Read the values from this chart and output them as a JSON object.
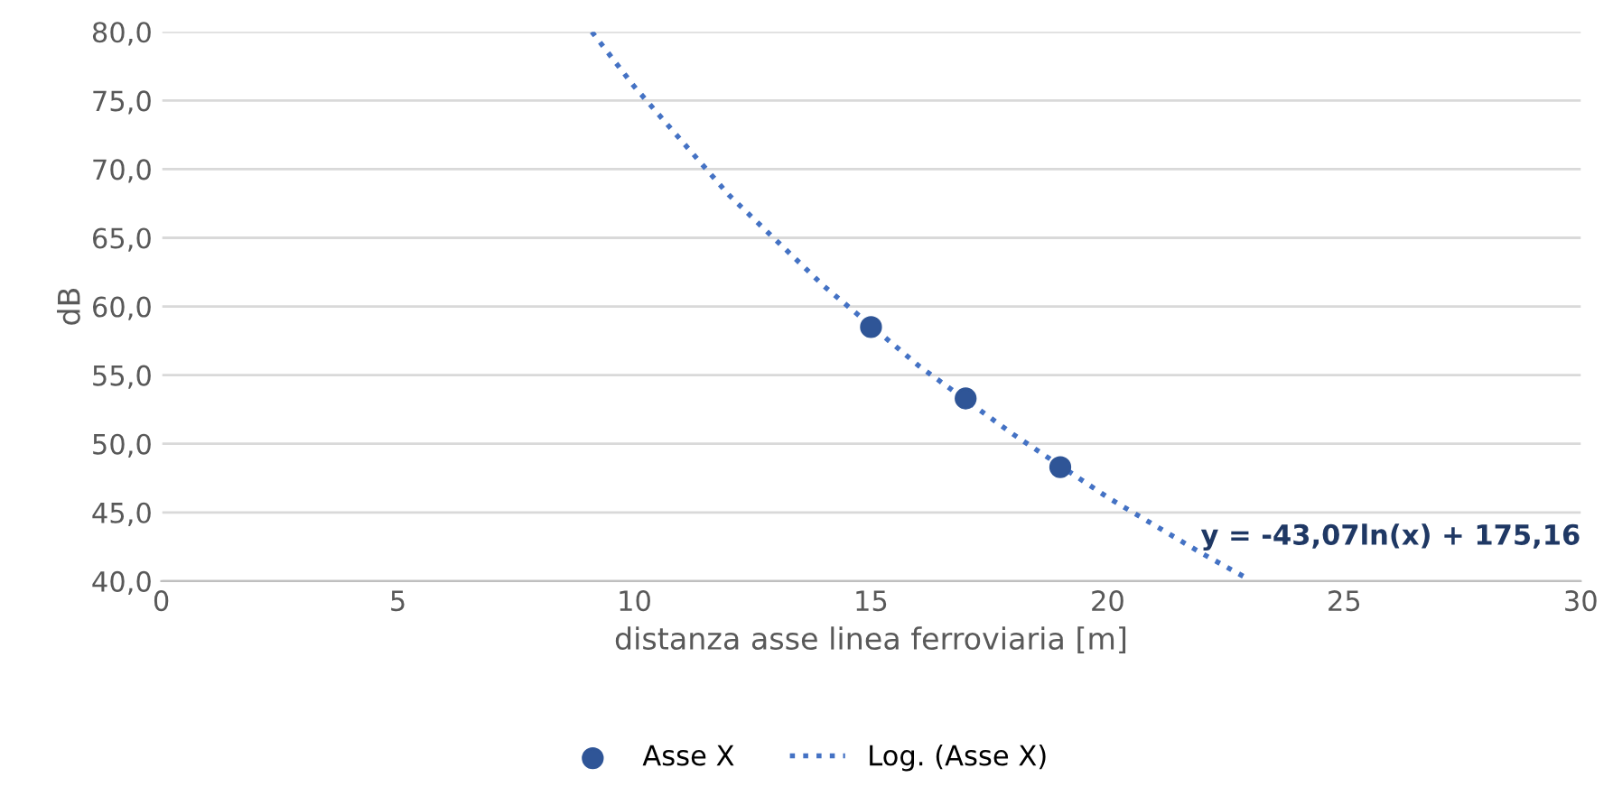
{
  "chart_data": {
    "type": "scatter",
    "xlabel": "distanza asse linea ferroviaria [m]",
    "ylabel": "dB",
    "xlim": [
      0,
      30
    ],
    "xticks": [
      0,
      5,
      10,
      15,
      20,
      25,
      30
    ],
    "ylim": [
      40,
      80
    ],
    "yticks": [
      {
        "value": 40,
        "label": "40,0"
      },
      {
        "value": 45,
        "label": "45,0"
      },
      {
        "value": 50,
        "label": "50,0"
      },
      {
        "value": 55,
        "label": "55,0"
      },
      {
        "value": 60,
        "label": "60,0"
      },
      {
        "value": 65,
        "label": "65,0"
      },
      {
        "value": 70,
        "label": "70,0"
      },
      {
        "value": 75,
        "label": "75,0"
      },
      {
        "value": 80,
        "label": "80,0"
      }
    ],
    "grid": "y",
    "legend": "bottom",
    "marker": "circle",
    "series": [
      {
        "name": "Asse X",
        "color": "#2f5597",
        "x": [
          15,
          17,
          19
        ],
        "values": [
          58.5,
          53.3,
          48.3
        ]
      },
      {
        "name": "Log. (Asse X)",
        "type": "line",
        "line_style": "dotted",
        "marker": "none",
        "color": "#4472c4",
        "x": [
          9.1,
          10,
          12,
          14,
          16,
          18,
          20,
          22,
          23
        ],
        "values": [
          80.0,
          76.0,
          68.1,
          61.5,
          55.7,
          50.7,
          46.1,
          42.0,
          40.1
        ]
      }
    ],
    "annotations": [
      "y = -43,07ln(x) + 175,16"
    ]
  }
}
